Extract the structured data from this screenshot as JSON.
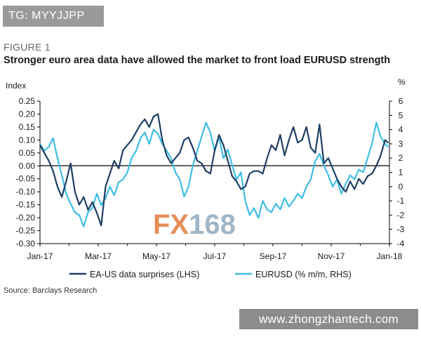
{
  "overlay": {
    "top_tag": "TG: MYYJJPP",
    "bottom_tag": "www.zhongzhantech.com",
    "watermark": "FX168"
  },
  "figure": {
    "label": "FIGURE 1",
    "title": "Stronger euro area data have allowed the market to front load EURUSD strength",
    "source": "Source: Barclays Research"
  },
  "colors": {
    "dark_series": "#1f3f63",
    "light_series": "#3fbde6",
    "axis": "#000000",
    "watermark_fx": "#e07a3c",
    "watermark_num": "#8fa9bd"
  },
  "chart_data": {
    "type": "line",
    "title": "Stronger euro area data have allowed the market to front load EURUSD strength",
    "ylabel_left": "Index",
    "ylabel_right": "%",
    "ylim_left": [
      -0.3,
      0.25
    ],
    "ylim_right": [
      -4,
      6
    ],
    "yticks_left": [
      "0.25",
      "0.20",
      "0.15",
      "0.10",
      "0.05",
      "0.00",
      "-0.05",
      "-0.10",
      "-0.15",
      "-0.20",
      "-0.25",
      "-0.30"
    ],
    "yticks_right": [
      "6",
      "5",
      "4",
      "3",
      "2",
      "1",
      "0",
      "-1",
      "-2",
      "-3",
      "-4"
    ],
    "xticks": [
      "Jan-17",
      "Mar-17",
      "May-17",
      "Jul-17",
      "Sep-17",
      "Nov-17",
      "Jan-18"
    ],
    "xlim": [
      0,
      12
    ],
    "series": [
      {
        "name": "EA-US data surprises (LHS)",
        "axis": "left",
        "color": "#1f3f63",
        "x": [
          0.0,
          0.15,
          0.3,
          0.45,
          0.6,
          0.75,
          0.9,
          1.05,
          1.2,
          1.35,
          1.5,
          1.65,
          1.8,
          1.95,
          2.1,
          2.25,
          2.4,
          2.55,
          2.7,
          2.85,
          3.0,
          3.15,
          3.3,
          3.45,
          3.6,
          3.75,
          3.9,
          4.05,
          4.2,
          4.35,
          4.5,
          4.65,
          4.8,
          4.95,
          5.1,
          5.25,
          5.4,
          5.55,
          5.7,
          5.85,
          6.0,
          6.15,
          6.3,
          6.45,
          6.6,
          6.75,
          6.9,
          7.05,
          7.2,
          7.35,
          7.5,
          7.65,
          7.8,
          7.95,
          8.1,
          8.25,
          8.4,
          8.55,
          8.7,
          8.85,
          9.0,
          9.15,
          9.3,
          9.45,
          9.6,
          9.75,
          9.9,
          10.05,
          10.2,
          10.35,
          10.5,
          10.65,
          10.8,
          10.95,
          11.1,
          11.25,
          11.4,
          11.55,
          11.7,
          11.85,
          11.95
        ],
        "values": [
          0.08,
          0.05,
          0.02,
          -0.02,
          -0.08,
          -0.12,
          -0.06,
          0.01,
          -0.1,
          -0.15,
          -0.12,
          -0.17,
          -0.14,
          -0.18,
          -0.23,
          -0.08,
          -0.03,
          0.02,
          -0.01,
          0.06,
          0.08,
          0.1,
          0.13,
          0.16,
          0.18,
          0.15,
          0.19,
          0.2,
          0.1,
          0.04,
          0.01,
          0.03,
          0.05,
          0.1,
          0.11,
          0.07,
          0.02,
          0.01,
          -0.02,
          -0.03,
          0.06,
          0.12,
          0.08,
          0.02,
          -0.04,
          -0.06,
          -0.09,
          -0.08,
          -0.03,
          -0.02,
          -0.02,
          -0.03,
          0.03,
          0.08,
          0.06,
          0.12,
          0.04,
          0.1,
          0.15,
          0.09,
          0.1,
          0.15,
          0.07,
          0.05,
          0.16,
          0.01,
          0.03,
          -0.01,
          -0.05,
          -0.08,
          -0.1,
          -0.06,
          -0.09,
          -0.05,
          -0.07,
          -0.04,
          -0.03,
          0.0,
          0.04,
          0.1,
          0.09
        ]
      },
      {
        "name": "EURUSD (% m/m, RHS)",
        "axis": "right",
        "color": "#3fbde6",
        "x": [
          0.0,
          0.15,
          0.3,
          0.45,
          0.6,
          0.75,
          0.9,
          1.05,
          1.2,
          1.35,
          1.5,
          1.65,
          1.8,
          1.95,
          2.1,
          2.25,
          2.4,
          2.55,
          2.7,
          2.85,
          3.0,
          3.15,
          3.3,
          3.45,
          3.6,
          3.75,
          3.9,
          4.05,
          4.2,
          4.35,
          4.5,
          4.65,
          4.8,
          4.95,
          5.1,
          5.25,
          5.4,
          5.55,
          5.7,
          5.85,
          6.0,
          6.15,
          6.3,
          6.45,
          6.6,
          6.75,
          6.9,
          7.05,
          7.2,
          7.35,
          7.5,
          7.65,
          7.8,
          7.95,
          8.1,
          8.25,
          8.4,
          8.55,
          8.7,
          8.85,
          9.0,
          9.15,
          9.3,
          9.45,
          9.6,
          9.75,
          9.9,
          10.05,
          10.2,
          10.35,
          10.5,
          10.65,
          10.8,
          10.95,
          11.1,
          11.25,
          11.4,
          11.55,
          11.7,
          11.85,
          11.95
        ],
        "values": [
          3.0,
          2.5,
          2.8,
          3.4,
          2.0,
          0.8,
          -0.5,
          -1.2,
          -1.8,
          -2.0,
          -2.8,
          -1.8,
          -1.5,
          -0.5,
          -1.3,
          -0.8,
          0.0,
          -0.6,
          0.3,
          0.5,
          1.0,
          2.0,
          2.5,
          3.4,
          3.8,
          3.0,
          4.0,
          3.7,
          3.0,
          2.5,
          2.0,
          1.0,
          0.5,
          -0.7,
          0.0,
          1.5,
          2.5,
          3.5,
          4.5,
          3.8,
          2.5,
          3.5,
          2.0,
          2.6,
          1.5,
          0.5,
          1.0,
          -1.0,
          -2.0,
          -1.5,
          -2.2,
          -1.0,
          -1.6,
          -1.8,
          -1.2,
          -1.6,
          -0.8,
          -1.4,
          -1.0,
          -0.5,
          -0.8,
          0.0,
          0.5,
          1.8,
          2.3,
          1.5,
          0.8,
          0.0,
          0.5,
          -0.5,
          0.2,
          0.8,
          0.5,
          1.2,
          1.0,
          2.0,
          3.0,
          4.5,
          3.5,
          3.0,
          2.8
        ]
      }
    ],
    "legend": {
      "placement": "bottom",
      "entries": [
        "EA-US data surprises (LHS)",
        "EURUSD (% m/m, RHS)"
      ]
    },
    "grid": false
  }
}
